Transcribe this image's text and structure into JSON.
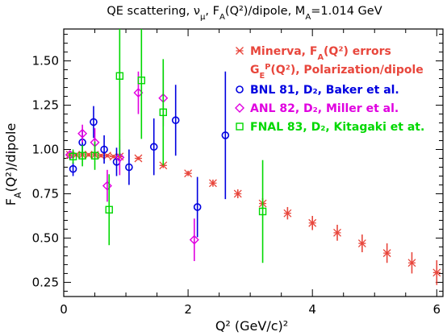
{
  "chart_data": {
    "type": "scatter",
    "title": "QE scattering, ν_μ, F_A(Q²)/dipole, M_A=1.014 GeV",
    "xlabel": "Q² (GeV/c)²",
    "ylabel": "F_A(Q²)/dipole",
    "xlim": [
      0,
      6.1
    ],
    "ylim": [
      0.17,
      1.68
    ],
    "xticks": [
      "0",
      "2",
      "4",
      "6"
    ],
    "yticks": [
      "0.25",
      "0.50",
      "0.75",
      "1.00",
      "1.25",
      "1.50"
    ],
    "legend_position": "top-right",
    "series": [
      {
        "name": "Minerva, F_A(Q²) errors G_E^P(Q²), Polarization/dipole",
        "marker": "star",
        "color": "#e8463c",
        "points": [
          {
            "x": 0.1,
            "y": 0.97,
            "err": 0.01
          },
          {
            "x": 0.2,
            "y": 0.97,
            "err": 0.01
          },
          {
            "x": 0.3,
            "y": 0.97,
            "err": 0.01
          },
          {
            "x": 0.4,
            "y": 0.97,
            "err": 0.01
          },
          {
            "x": 0.5,
            "y": 0.97,
            "err": 0.01
          },
          {
            "x": 0.6,
            "y": 0.965,
            "err": 0.01
          },
          {
            "x": 0.7,
            "y": 0.965,
            "err": 0.01
          },
          {
            "x": 0.8,
            "y": 0.96,
            "err": 0.01
          },
          {
            "x": 0.9,
            "y": 0.96,
            "err": 0.01
          },
          {
            "x": 1.2,
            "y": 0.95,
            "err": 0.01
          },
          {
            "x": 1.6,
            "y": 0.91,
            "err": 0.015
          },
          {
            "x": 2.0,
            "y": 0.865,
            "err": 0.015
          },
          {
            "x": 2.4,
            "y": 0.81,
            "err": 0.02
          },
          {
            "x": 2.8,
            "y": 0.75,
            "err": 0.025
          },
          {
            "x": 3.2,
            "y": 0.695,
            "err": 0.03
          },
          {
            "x": 3.6,
            "y": 0.64,
            "err": 0.035
          },
          {
            "x": 4.0,
            "y": 0.585,
            "err": 0.04
          },
          {
            "x": 4.4,
            "y": 0.53,
            "err": 0.045
          },
          {
            "x": 4.8,
            "y": 0.47,
            "err": 0.05
          },
          {
            "x": 5.2,
            "y": 0.415,
            "err": 0.055
          },
          {
            "x": 5.6,
            "y": 0.36,
            "err": 0.06
          },
          {
            "x": 6.0,
            "y": 0.305,
            "err": 0.07
          }
        ]
      },
      {
        "name": "BNL 81, D₂, Baker et al.",
        "marker": "circle",
        "color": "#0000e0",
        "points": [
          {
            "x": 0.15,
            "y": 0.89,
            "err": 0.04
          },
          {
            "x": 0.3,
            "y": 1.04,
            "err": 0.07
          },
          {
            "x": 0.48,
            "y": 1.155,
            "err": 0.09
          },
          {
            "x": 0.65,
            "y": 1.0,
            "err": 0.08
          },
          {
            "x": 0.85,
            "y": 0.93,
            "err": 0.08
          },
          {
            "x": 1.05,
            "y": 0.9,
            "err": 0.1
          },
          {
            "x": 1.45,
            "y": 1.015,
            "err": 0.16
          },
          {
            "x": 1.8,
            "y": 1.165,
            "err": 0.2
          },
          {
            "x": 2.15,
            "y": 0.675,
            "err": 0.17
          },
          {
            "x": 2.6,
            "y": 1.08,
            "err": 0.36
          }
        ]
      },
      {
        "name": "ANL 82, D₂, Miller et al.",
        "marker": "diamond",
        "color": "#e000e0",
        "points": [
          {
            "x": 0.1,
            "y": 0.97,
            "err": 0.02
          },
          {
            "x": 0.3,
            "y": 1.09,
            "err": 0.05
          },
          {
            "x": 0.5,
            "y": 1.04,
            "err": 0.08
          },
          {
            "x": 0.7,
            "y": 0.795,
            "err": 0.09
          },
          {
            "x": 0.9,
            "y": 0.955,
            "err": 0.1
          },
          {
            "x": 1.2,
            "y": 1.32,
            "err": 0.12
          },
          {
            "x": 1.6,
            "y": 1.29,
            "err": 0.16
          },
          {
            "x": 2.1,
            "y": 0.49,
            "err": 0.12
          }
        ]
      },
      {
        "name": "FNAL 83, D₂, Kitagaki et at.",
        "marker": "square",
        "color": "#00d800",
        "points": [
          {
            "x": 0.15,
            "y": 0.96,
            "err": 0.04
          },
          {
            "x": 0.3,
            "y": 0.965,
            "err": 0.06
          },
          {
            "x": 0.5,
            "y": 0.965,
            "err": 0.08
          },
          {
            "x": 0.73,
            "y": 0.66,
            "err": 0.2
          },
          {
            "x": 0.9,
            "y": 1.415,
            "err": 0.45
          },
          {
            "x": 1.25,
            "y": 1.39,
            "err": 0.33
          },
          {
            "x": 1.6,
            "y": 1.21,
            "err": 0.3
          },
          {
            "x": 3.2,
            "y": 0.65,
            "err": 0.29
          }
        ]
      }
    ]
  }
}
